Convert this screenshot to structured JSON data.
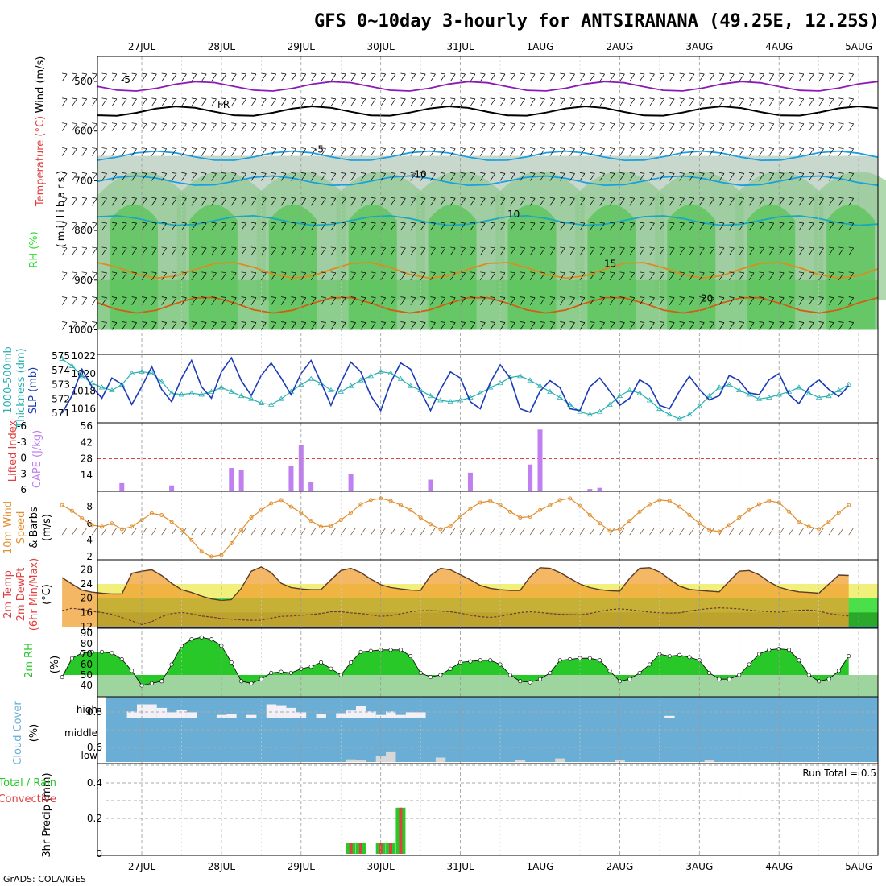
{
  "title": "GFS 0~10day 3-hourly for ANTSIRANANA (49.25E, 12.25S)",
  "credit": "GrADS: COLA/IGES",
  "colors": {
    "rh_light": "#c9d8cc",
    "rh_mid": "#8fc98f",
    "rh_dark": "#5bc55b",
    "rh_bright": "#33dd33",
    "purple": "#8a1ab8",
    "cyan": "#1aa0e0",
    "teal": "#1aa8c0",
    "orange": "#e08a1a",
    "darkorange": "#d06010",
    "magenta": "#d01890",
    "slp": "#1a3ab8",
    "thick": "#28b0b0",
    "cape": "#c080f0",
    "li": "#e04040",
    "wind10": "#e09030",
    "temp_fill": "#f0a030",
    "temp_yellow": "#f0f07a",
    "dew_green": "#4ae04a",
    "rh2m": "#28c828",
    "cloud": "#6aaed6",
    "precip_green": "#28c828",
    "precip_red": "#e04040"
  },
  "chart_data": {
    "type": "meteogram",
    "dates": [
      "27JUL",
      "28JUL",
      "29JUL",
      "30JUL",
      "31JUL",
      "1AUG",
      "2AUG",
      "3AUG",
      "4AUG",
      "5AUG"
    ],
    "panels": [
      {
        "id": "upper",
        "axis_labels": [
          "Wind (m/s)",
          "Temperature (°C)",
          "RH (%)",
          "(millibars)"
        ],
        "yticks": [
          "500",
          "600",
          "700",
          "800",
          "900",
          "1000"
        ],
        "isotherms": [
          {
            "label": "-5",
            "level_mb": 510
          },
          {
            "label": "FR",
            "level_mb": 560
          },
          {
            "label": "-5",
            "level_mb": 650
          },
          {
            "label": "-10",
            "level_mb": 700
          },
          {
            "label": "10",
            "level_mb": 780
          },
          {
            "label": "15",
            "level_mb": 880
          },
          {
            "label": "20",
            "level_mb": 950
          }
        ]
      },
      {
        "id": "slp_thickness",
        "axis_labels": [
          "1000-500mb",
          "Thickness (dm)",
          "SLP (mb)"
        ],
        "left_ticks": [
          "575",
          "574",
          "573",
          "572",
          "571"
        ],
        "right_ticks": [
          "1022",
          "1020",
          "1018",
          "1016"
        ],
        "slp_mb": [
          1015.5,
          1017.5,
          1020.5,
          1018.5,
          1017.2,
          1019.5,
          1018.8,
          1016.5,
          1018.5,
          1020.8,
          1018.2,
          1016.8,
          1019.5,
          1021.5,
          1018.5,
          1017.2,
          1020.2,
          1021.8,
          1019.2,
          1017.5,
          1019.8,
          1021.2,
          1019.5,
          1017.6,
          1020.0,
          1021.5,
          1019.0,
          1016.4,
          1019.0,
          1021.3,
          1020.2,
          1017.5,
          1015.8,
          1019.0,
          1021.2,
          1020.5,
          1018.0,
          1015.8,
          1018.2,
          1020.2,
          1019.5,
          1016.8,
          1016.0,
          1019.0,
          1021.0,
          1019.5,
          1016.0,
          1015.6,
          1018.0,
          1019.2,
          1018.4,
          1016.0,
          1015.8,
          1018.5,
          1019.5,
          1018.0,
          1016.4,
          1017.2,
          1019.3,
          1018.6,
          1016.4,
          1016.0,
          1018.0,
          1019.7,
          1018.2,
          1017.0,
          1017.5,
          1019.8,
          1019.2,
          1017.8,
          1017.6,
          1019.3,
          1020.0,
          1017.6,
          1016.6,
          1018.4,
          1019.3,
          1018.2,
          1017.4,
          1018.6
        ],
        "thickness_dm": [
          574.8,
          574.3,
          573.6,
          573.1,
          572.8,
          572.6,
          573.0,
          573.8,
          573.9,
          573.8,
          573.2,
          572.4,
          572.3,
          572.4,
          572.3,
          572.5,
          572.8,
          572.5,
          572.2,
          572.0,
          571.7,
          571.6,
          572.0,
          572.5,
          573.0,
          573.4,
          573.1,
          572.6,
          572.5,
          572.9,
          573.3,
          573.6,
          573.9,
          573.8,
          573.4,
          572.9,
          572.6,
          572.2,
          571.9,
          571.8,
          571.9,
          572.1,
          572.4,
          572.8,
          573.1,
          573.5,
          573.6,
          573.3,
          572.9,
          572.5,
          572.1,
          571.6,
          571.1,
          570.9,
          571.1,
          571.6,
          572.2,
          572.6,
          572.4,
          571.9,
          571.3,
          570.9,
          570.6,
          570.9,
          571.5,
          572.2,
          572.8,
          573.0,
          572.6,
          572.3,
          572.0,
          572.1,
          572.3,
          572.5,
          572.8,
          572.4,
          572.1,
          572.2,
          572.6,
          573.0
        ]
      },
      {
        "id": "cape_li",
        "axis_labels": [
          "Lifted Index",
          "CAPE (J/kg)"
        ],
        "left_ticks": [
          "-6",
          "-3",
          "0",
          "3",
          "6"
        ],
        "right_ticks": [
          "56",
          "42",
          "28",
          "14"
        ],
        "cape_bars": [
          {
            "i": 6,
            "v": 7
          },
          {
            "i": 11,
            "v": 5
          },
          {
            "i": 17,
            "v": 20
          },
          {
            "i": 18,
            "v": 18
          },
          {
            "i": 23,
            "v": 22
          },
          {
            "i": 24,
            "v": 40
          },
          {
            "i": 25,
            "v": 8
          },
          {
            "i": 29,
            "v": 15
          },
          {
            "i": 37,
            "v": 10
          },
          {
            "i": 41,
            "v": 16
          },
          {
            "i": 47,
            "v": 23
          },
          {
            "i": 48,
            "v": 53
          },
          {
            "i": 53,
            "v": 2
          },
          {
            "i": 54,
            "v": 3
          }
        ]
      },
      {
        "id": "wind10m",
        "axis_labels": [
          "10m Wind",
          "Speed",
          "& Barbs",
          "(m/s)"
        ],
        "yticks": [
          "8",
          "6",
          "4",
          "2"
        ],
        "speed_ms": [
          8.2,
          7.5,
          6.6,
          5.8,
          5.6,
          6.0,
          5.3,
          5.6,
          6.4,
          7.2,
          7.0,
          6.2,
          5.2,
          4.0,
          2.6,
          2.0,
          2.2,
          3.6,
          5.2,
          6.7,
          7.6,
          8.4,
          8.8,
          8.0,
          7.3,
          6.3,
          5.6,
          5.7,
          6.4,
          7.3,
          8.3,
          8.8,
          9.0,
          8.7,
          8.2,
          7.6,
          6.7,
          5.9,
          5.3,
          5.7,
          6.8,
          7.8,
          8.5,
          8.7,
          8.2,
          7.4,
          6.7,
          6.8,
          7.6,
          8.2,
          8.8,
          9.0,
          8.1,
          7.0,
          6.0,
          5.1,
          5.3,
          6.3,
          7.4,
          8.3,
          8.8,
          8.7,
          8.0,
          7.0,
          6.0,
          5.2,
          5.0,
          5.8,
          6.7,
          7.6,
          8.3,
          8.7,
          8.5,
          7.4,
          6.2,
          5.6,
          5.3,
          6.2,
          7.3,
          8.2
        ]
      },
      {
        "id": "temp2m",
        "axis_labels": [
          "2m Temp",
          "2m DewPt",
          "(6hr Min/Max)",
          "(°C)"
        ],
        "yticks": [
          "28",
          "24",
          "20",
          "16",
          "12"
        ],
        "temp_c": [
          25.8,
          24.0,
          22.3,
          21.7,
          21.4,
          21.2,
          21.2,
          27.0,
          27.6,
          28.0,
          26.4,
          24.2,
          22.4,
          21.6,
          20.6,
          19.8,
          19.4,
          19.6,
          22.8,
          27.6,
          28.8,
          27.2,
          24.2,
          23.0,
          22.6,
          22.4,
          22.4,
          25.2,
          27.8,
          28.4,
          27.2,
          25.4,
          23.8,
          23.0,
          22.6,
          22.3,
          22.2,
          26.4,
          28.4,
          28.0,
          26.6,
          25.2,
          23.6,
          22.8,
          22.4,
          22.2,
          22.2,
          26.0,
          28.6,
          28.4,
          27.2,
          25.6,
          24.0,
          23.0,
          22.4,
          22.1,
          22.0,
          25.6,
          28.4,
          28.6,
          27.4,
          25.4,
          23.4,
          22.5,
          22.2,
          22.0,
          21.8,
          24.8,
          27.6,
          27.8,
          26.6,
          24.6,
          23.1,
          22.3,
          21.8,
          21.6,
          21.4,
          24.0,
          26.5,
          26.4
        ],
        "dewpt_c": [
          16.5,
          17.2,
          16.8,
          16.3,
          16.0,
          15.5,
          14.6,
          13.6,
          12.6,
          13.4,
          14.8,
          15.7,
          16.0,
          15.6,
          15.0,
          14.7,
          14.3,
          14.1,
          13.9,
          13.8,
          13.8,
          14.4,
          14.9,
          15.0,
          15.2,
          15.4,
          15.7,
          16.2,
          16.2,
          15.9,
          15.7,
          15.3,
          14.9,
          15.1,
          15.6,
          16.2,
          16.5,
          16.5,
          16.4,
          16.2,
          15.8,
          15.2,
          14.8,
          14.6,
          14.9,
          15.5,
          16.0,
          16.2,
          16.0,
          15.7,
          15.5,
          15.4,
          15.3,
          15.7,
          16.3,
          16.8,
          17.0,
          16.8,
          16.4,
          16.1,
          15.9,
          15.8,
          15.9,
          16.4,
          16.8,
          17.1,
          17.3,
          17.2,
          17.0,
          16.7,
          16.4,
          16.2,
          16.1,
          16.4,
          16.6,
          16.7,
          16.4,
          15.7,
          15.3,
          15.0
        ]
      },
      {
        "id": "rh2m",
        "axis_labels": [
          "2m RH",
          "(%)"
        ],
        "yticks": [
          "90",
          "80",
          "70",
          "60",
          "50",
          "40"
        ],
        "rh_pct": [
          48.0,
          66.0,
          71.0,
          72.0,
          72.0,
          71.0,
          65.0,
          54.0,
          40.0,
          42.0,
          44.0,
          60.0,
          78.0,
          84.0,
          86.0,
          84.0,
          78.0,
          62.0,
          44.0,
          42.0,
          46.0,
          52.0,
          53.0,
          52.0,
          56.0,
          58.0,
          62.0,
          56.0,
          50.0,
          62.0,
          72.0,
          73.0,
          74.0,
          74.0,
          74.0,
          68.0,
          52.0,
          48.0,
          50.0,
          56.0,
          62.0,
          63.0,
          64.0,
          64.0,
          60.0,
          50.0,
          44.0,
          43.0,
          46.0,
          52.0,
          64.0,
          65.0,
          66.0,
          66.0,
          64.0,
          54.0,
          44.0,
          46.0,
          52.0,
          60.0,
          70.0,
          68.0,
          69.0,
          67.0,
          64.0,
          52.0,
          46.0,
          46.0,
          50.0,
          60.0,
          70.0,
          74.0,
          75.0,
          74.0,
          64.0,
          50.0,
          44.0,
          46.0,
          54.0,
          68.0
        ]
      },
      {
        "id": "cloud",
        "axis_labels": [
          "Cloud Cover",
          "(%)"
        ],
        "yticks": [
          "high",
          "middle",
          "low"
        ],
        "high_bars": [
          {
            "i": 7,
            "v": 0.35
          },
          {
            "i": 8,
            "v": 0.75
          },
          {
            "i": 9,
            "v": 0.75
          },
          {
            "i": 10,
            "v": 0.55
          },
          {
            "i": 11,
            "v": 0.3
          },
          {
            "i": 12,
            "v": 0.45
          },
          {
            "i": 13,
            "v": 0.3
          },
          {
            "i": 16,
            "v": 0.15
          },
          {
            "i": 17,
            "v": 0.2
          },
          {
            "i": 19,
            "v": 0.15
          },
          {
            "i": 21,
            "v": 0.75
          },
          {
            "i": 22,
            "v": 0.7
          },
          {
            "i": 23,
            "v": 0.55
          },
          {
            "i": 24,
            "v": 0.3
          },
          {
            "i": 26,
            "v": 0.2
          },
          {
            "i": 28,
            "v": 0.25
          },
          {
            "i": 29,
            "v": 0.4
          },
          {
            "i": 30,
            "v": 0.65
          },
          {
            "i": 31,
            "v": 0.35
          },
          {
            "i": 32,
            "v": 0.15
          },
          {
            "i": 33,
            "v": 0.35
          },
          {
            "i": 34,
            "v": 0.15
          },
          {
            "i": 35,
            "v": 0.3
          },
          {
            "i": 36,
            "v": 0.3
          },
          {
            "i": 61,
            "v": 0.1
          }
        ],
        "low_bars": [
          {
            "i": 29,
            "v": 0.15
          },
          {
            "i": 30,
            "v": 0.1
          },
          {
            "i": 32,
            "v": 0.35
          },
          {
            "i": 33,
            "v": 0.55
          },
          {
            "i": 38,
            "v": 0.25
          },
          {
            "i": 46,
            "v": 0.1
          },
          {
            "i": 50,
            "v": 0.2
          },
          {
            "i": 56,
            "v": 0.1
          },
          {
            "i": 65,
            "v": 0.1
          }
        ]
      },
      {
        "id": "precip",
        "axis_labels": [
          "3hr Precip (mm)",
          "Total / Rain",
          "Convective"
        ],
        "yticks": [
          "0.8",
          "0.6",
          "0.4",
          "0.2",
          "0"
        ],
        "run_total_label": "Run Total = 0.5",
        "bars": [
          {
            "i": 29,
            "total": 0.06,
            "conv": 0.06
          },
          {
            "i": 30,
            "total": 0.06,
            "conv": 0.06
          },
          {
            "i": 32,
            "total": 0.06,
            "conv": 0.06
          },
          {
            "i": 33,
            "total": 0.06,
            "conv": 0.06
          },
          {
            "i": 34,
            "total": 0.26,
            "conv": 0.26
          }
        ]
      }
    ]
  }
}
